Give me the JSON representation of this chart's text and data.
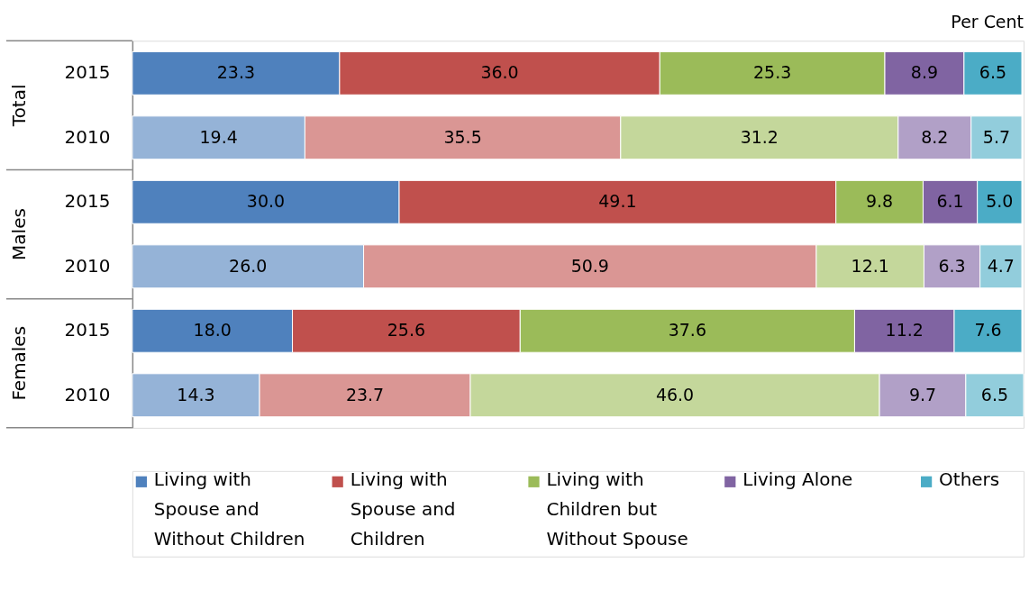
{
  "chart_data": {
    "type": "bar",
    "orientation": "horizontal",
    "stacked": true,
    "legend": "bottom",
    "xlabel": "Per Cent",
    "categories": [
      "2015",
      "2010",
      "2015",
      "2010",
      "2015",
      "2010"
    ],
    "annotations": [
      "Total",
      "Males",
      "Females"
    ],
    "series": [
      {
        "name": "Living with Spouse and Without Children",
        "color": "#4f81bd",
        "colors": [
          "#4f81bd",
          "#95b3d7",
          "#4f81bd",
          "#95b3d7",
          "#4f81bd",
          "#95b3d7"
        ],
        "values": [
          23.3,
          19.4,
          30.0,
          26.0,
          18.0,
          14.3
        ],
        "value_labels": [
          "23.3",
          "19.4",
          "30.0",
          "26.0",
          "18.0",
          "14.3"
        ]
      },
      {
        "name": "Living with Spouse and Children",
        "color": "#c0504d",
        "colors": [
          "#c0504d",
          "#da9694",
          "#c0504d",
          "#da9694",
          "#c0504d",
          "#da9694"
        ],
        "values": [
          36.0,
          35.5,
          49.1,
          50.9,
          25.6,
          23.7
        ],
        "value_labels": [
          "36.0",
          "35.5",
          "49.1",
          "50.9",
          "25.6",
          "23.7"
        ]
      },
      {
        "name": "Living with Children but Without Spouse",
        "color": "#9bbb59",
        "colors": [
          "#9bbb59",
          "#c4d79b",
          "#9bbb59",
          "#c4d79b",
          "#9bbb59",
          "#c4d79b"
        ],
        "values": [
          25.3,
          31.2,
          9.8,
          12.1,
          37.6,
          46.0
        ],
        "value_labels": [
          "25.3",
          "31.2",
          "9.8",
          "12.1",
          "37.6",
          "46.0"
        ]
      },
      {
        "name": "Living Alone",
        "color": "#8064a2",
        "colors": [
          "#8064a2",
          "#b1a0c7",
          "#8064a2",
          "#b1a0c7",
          "#8064a2",
          "#b1a0c7"
        ],
        "values": [
          8.9,
          8.2,
          6.1,
          6.3,
          11.2,
          9.7
        ],
        "value_labels": [
          "8.9",
          "8.2",
          "6.1",
          "6.3",
          "11.2",
          "9.7"
        ]
      },
      {
        "name": "Others",
        "color": "#4bacc6",
        "colors": [
          "#4bacc6",
          "#92cddc",
          "#4bacc6",
          "#92cddc",
          "#4bacc6",
          "#92cddc"
        ],
        "values": [
          6.5,
          5.7,
          5.0,
          4.7,
          7.6,
          6.5
        ],
        "value_labels": [
          "6.5",
          "5.7",
          "5.0",
          "4.7",
          "7.6",
          "6.5"
        ]
      }
    ]
  }
}
